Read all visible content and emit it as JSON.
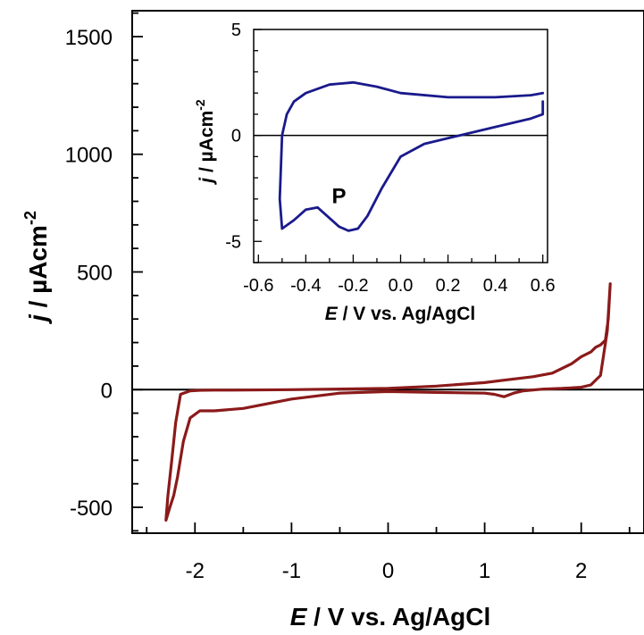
{
  "chart_data": [
    {
      "type": "line",
      "title": "",
      "xlabel": {
        "italic": "E",
        "rest": " / V vs. Ag/AgCl"
      },
      "ylabel": {
        "italic": "j",
        "rest": " / µAcm",
        "sup": "-2"
      },
      "xlim": [
        -2.65,
        2.65
      ],
      "ylim": [
        -610,
        1610
      ],
      "xticks": [
        -2,
        -1,
        0,
        1,
        2
      ],
      "xtick_labels": [
        "-2",
        "-1",
        "0",
        "1",
        "2"
      ],
      "yticks": [
        -500,
        0,
        500,
        1000,
        1500
      ],
      "ytick_labels": [
        "-500",
        "0",
        "500",
        "1000",
        "1500"
      ],
      "zero_line": true,
      "grid": false,
      "series": [
        {
          "color": "#8b1a1a",
          "x": [
            2.3,
            2.27,
            2.2,
            2.1,
            2.0,
            1.8,
            1.6,
            1.4,
            1.3,
            1.2,
            1.1,
            1.0,
            0.5,
            0.0,
            -0.5,
            -1.0,
            -1.5,
            -1.8,
            -1.95,
            -2.05,
            -2.12,
            -2.18,
            -2.22,
            -2.26,
            -2.3,
            -2.28,
            -2.24,
            -2.2,
            -2.15,
            -2.05,
            -1.95,
            -1.8,
            -1.6,
            -1.0,
            0.0,
            0.5,
            1.0,
            1.2,
            1.5,
            1.7,
            1.9,
            2.0,
            2.1,
            2.15,
            2.2,
            2.25,
            2.28,
            2.3
          ],
          "y": [
            450,
            250,
            60,
            20,
            10,
            5,
            2,
            -5,
            -15,
            -30,
            -20,
            -15,
            -12,
            -8,
            -15,
            -40,
            -80,
            -90,
            -90,
            -120,
            -220,
            -370,
            -450,
            -500,
            -555,
            -450,
            -300,
            -140,
            -20,
            -5,
            -3,
            -2,
            -2,
            0,
            5,
            15,
            30,
            40,
            55,
            70,
            110,
            140,
            160,
            180,
            190,
            210,
            300,
            450
          ]
        }
      ]
    },
    {
      "type": "line",
      "inset": true,
      "title": "",
      "xlabel": {
        "italic": "E",
        "rest": " / V vs. Ag/AgCl"
      },
      "ylabel": {
        "italic": "j",
        "rest": " / µAcm",
        "sup": "-2"
      },
      "xlim": [
        -0.62,
        0.62
      ],
      "ylim": [
        -6,
        5
      ],
      "xticks": [
        -0.6,
        -0.4,
        -0.2,
        0.0,
        0.2,
        0.4,
        0.6
      ],
      "xtick_labels": [
        "-0.6",
        "-0.4",
        "-0.2",
        "0.0",
        "0.2",
        "0.4",
        "0.6"
      ],
      "yticks": [
        -5,
        0,
        5
      ],
      "ytick_labels": [
        "-5",
        "0",
        "5"
      ],
      "zero_line": true,
      "grid": false,
      "annotations": [
        {
          "text": "P",
          "x": -0.26,
          "y": -3.2
        }
      ],
      "series": [
        {
          "color": "#1a1a8c",
          "x": [
            0.6,
            0.6,
            0.55,
            0.4,
            0.25,
            0.1,
            0.0,
            -0.08,
            -0.14,
            -0.18,
            -0.22,
            -0.26,
            -0.3,
            -0.35,
            -0.4,
            -0.45,
            -0.5,
            -0.51,
            -0.5,
            -0.48,
            -0.45,
            -0.4,
            -0.3,
            -0.2,
            -0.1,
            0.0,
            0.2,
            0.4,
            0.55,
            0.6
          ],
          "y": [
            1.6,
            1.0,
            0.8,
            0.4,
            0.0,
            -0.4,
            -1.0,
            -2.5,
            -3.8,
            -4.4,
            -4.5,
            -4.3,
            -3.9,
            -3.4,
            -3.5,
            -4.0,
            -4.4,
            -3.0,
            0.0,
            1.0,
            1.6,
            2.0,
            2.4,
            2.5,
            2.3,
            2.0,
            1.8,
            1.8,
            1.9,
            2.0
          ]
        }
      ]
    }
  ]
}
